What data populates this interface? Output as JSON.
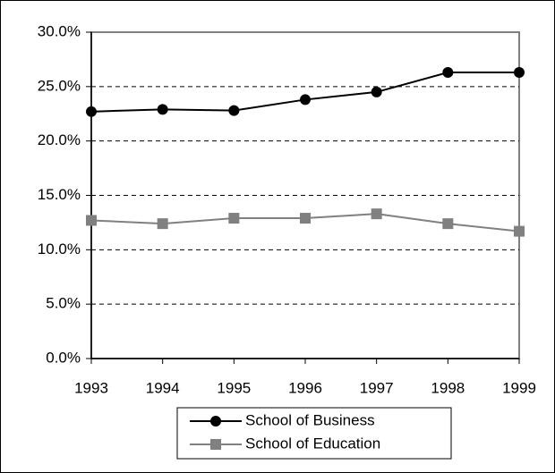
{
  "chart_data": {
    "type": "line",
    "categories": [
      "1993",
      "1994",
      "1995",
      "1996",
      "1997",
      "1998",
      "1999"
    ],
    "series": [
      {
        "name": "School of Business",
        "color": "#000000",
        "marker": "circle",
        "values": [
          22.7,
          22.9,
          22.8,
          23.8,
          24.5,
          26.3,
          26.3
        ]
      },
      {
        "name": "School of Education",
        "color": "#808080",
        "marker": "square",
        "values": [
          12.7,
          12.4,
          12.9,
          12.9,
          13.3,
          12.4,
          11.7
        ]
      }
    ],
    "ylim": [
      0,
      30
    ],
    "yticks": [
      {
        "value": 0,
        "label": "0.0%"
      },
      {
        "value": 5,
        "label": "5.0%"
      },
      {
        "value": 10,
        "label": "10.0%"
      },
      {
        "value": 15,
        "label": "15.0%"
      },
      {
        "value": 20,
        "label": "20.0%"
      },
      {
        "value": 25,
        "label": "25.0%"
      },
      {
        "value": 30,
        "label": "30.0%"
      }
    ],
    "grid": true,
    "legend": "bottom"
  }
}
